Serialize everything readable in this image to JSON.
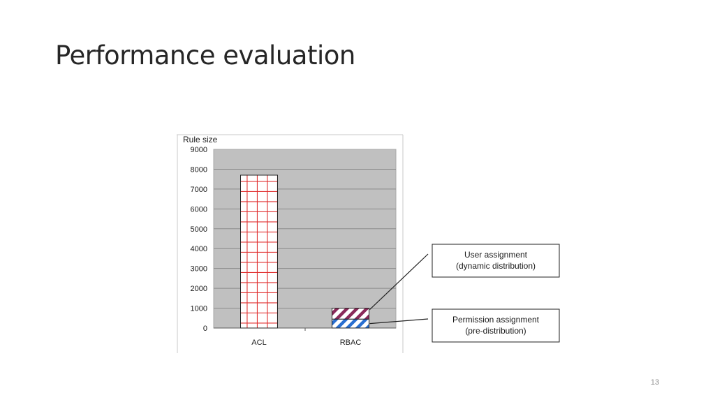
{
  "slide": {
    "title": "Performance evaluation",
    "page_number": "13"
  },
  "chart_data": {
    "type": "bar",
    "title": "",
    "ylabel": "Rule size",
    "xlabel": "",
    "ylim": [
      0,
      9000
    ],
    "yticks": [
      0,
      1000,
      2000,
      3000,
      4000,
      5000,
      6000,
      7000,
      8000,
      9000
    ],
    "grid": true,
    "categories": [
      "ACL",
      "RBAC"
    ],
    "bars": [
      {
        "category": "ACL",
        "segments": [
          {
            "name": "",
            "value": 7700,
            "pattern": "grid",
            "color": "#e03030"
          }
        ]
      },
      {
        "category": "RBAC",
        "segments": [
          {
            "name": "Permission assignment (pre-distribution)",
            "value": 450,
            "pattern": "hatch",
            "color": "#2a6fd0"
          },
          {
            "name": "User assignment (dynamic distribution)",
            "value": 550,
            "pattern": "hatch",
            "color": "#8a2a5a"
          }
        ]
      }
    ],
    "annotations": [
      {
        "target": "RBAC.User assignment",
        "lines": [
          "User assignment",
          "(dynamic distribution)"
        ]
      },
      {
        "target": "RBAC.Permission assignment",
        "lines": [
          "Permission assignment",
          "(pre-distribution)"
        ]
      }
    ],
    "colors": {
      "plot_bg": "#c0c0c0",
      "frame": "#a8a8a8",
      "grid": "#8a8a8a"
    }
  }
}
